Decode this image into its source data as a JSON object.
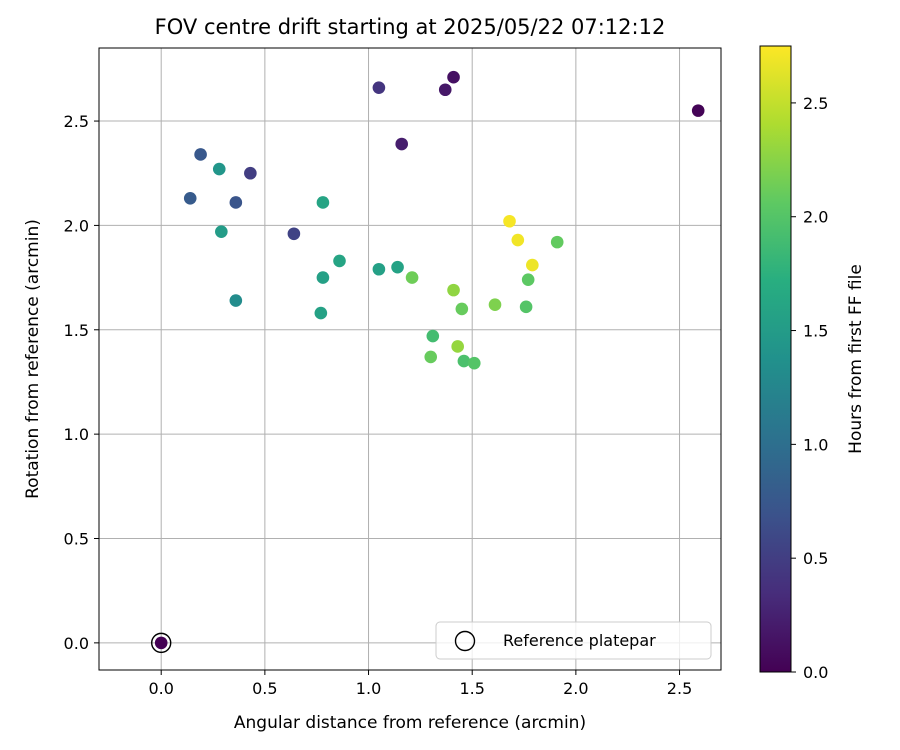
{
  "chart_data": {
    "type": "scatter",
    "title": "FOV centre drift starting at 2025/05/22 07:12:12",
    "xlabel": "Angular distance from reference (arcmin)",
    "ylabel": "Rotation from reference (arcmin)",
    "xlim": [
      -0.3,
      2.7
    ],
    "ylim": [
      -0.13,
      2.85
    ],
    "xticks": [
      0.0,
      0.5,
      1.0,
      1.5,
      2.0,
      2.5
    ],
    "xtick_labels": [
      "0.0",
      "0.5",
      "1.0",
      "1.5",
      "2.0",
      "2.5"
    ],
    "yticks": [
      0.0,
      0.5,
      1.0,
      1.5,
      2.0,
      2.5
    ],
    "ytick_labels": [
      "0.0",
      "0.5",
      "1.0",
      "1.5",
      "2.0",
      "2.5"
    ],
    "grid": true,
    "colorbar": {
      "label": "Hours from first FF file",
      "colormap": "viridis",
      "range": [
        0.0,
        2.75
      ],
      "ticks": [
        0.0,
        0.5,
        1.0,
        1.5,
        2.0,
        2.5
      ],
      "tick_labels": [
        "0.0",
        "0.5",
        "1.0",
        "1.5",
        "2.0",
        "2.5"
      ]
    },
    "reference": {
      "x": 0.0,
      "y": 0.0,
      "label": "Reference platepar"
    },
    "legend": {
      "position": "lower-right",
      "entries": [
        "Reference platepar"
      ]
    },
    "series": [
      {
        "name": "FOV centre",
        "points": [
          {
            "x": 0.0,
            "y": 0.0,
            "t": 0.0
          },
          {
            "x": 2.59,
            "y": 2.55,
            "t": 0.02
          },
          {
            "x": 1.41,
            "y": 2.71,
            "t": 0.12
          },
          {
            "x": 1.37,
            "y": 2.65,
            "t": 0.18
          },
          {
            "x": 1.16,
            "y": 2.39,
            "t": 0.22
          },
          {
            "x": 1.05,
            "y": 2.66,
            "t": 0.42
          },
          {
            "x": 0.43,
            "y": 2.25,
            "t": 0.5
          },
          {
            "x": 0.64,
            "y": 1.96,
            "t": 0.55
          },
          {
            "x": 0.19,
            "y": 2.34,
            "t": 0.75
          },
          {
            "x": 0.14,
            "y": 2.13,
            "t": 0.78
          },
          {
            "x": 0.36,
            "y": 2.11,
            "t": 0.72
          },
          {
            "x": 0.36,
            "y": 1.64,
            "t": 1.32
          },
          {
            "x": 0.28,
            "y": 2.27,
            "t": 1.43
          },
          {
            "x": 0.29,
            "y": 1.97,
            "t": 1.5
          },
          {
            "x": 0.78,
            "y": 2.11,
            "t": 1.6
          },
          {
            "x": 0.78,
            "y": 1.75,
            "t": 1.55
          },
          {
            "x": 0.77,
            "y": 1.58,
            "t": 1.57
          },
          {
            "x": 0.86,
            "y": 1.83,
            "t": 1.6
          },
          {
            "x": 1.05,
            "y": 1.79,
            "t": 1.55
          },
          {
            "x": 1.14,
            "y": 1.8,
            "t": 1.58
          },
          {
            "x": 1.21,
            "y": 1.75,
            "t": 2.13
          },
          {
            "x": 1.31,
            "y": 1.47,
            "t": 1.9
          },
          {
            "x": 1.3,
            "y": 1.37,
            "t": 2.1
          },
          {
            "x": 1.41,
            "y": 1.69,
            "t": 2.28
          },
          {
            "x": 1.45,
            "y": 1.6,
            "t": 2.1
          },
          {
            "x": 1.43,
            "y": 1.42,
            "t": 2.3
          },
          {
            "x": 1.46,
            "y": 1.35,
            "t": 1.95
          },
          {
            "x": 1.51,
            "y": 1.34,
            "t": 2.0
          },
          {
            "x": 1.61,
            "y": 1.62,
            "t": 2.2
          },
          {
            "x": 1.68,
            "y": 2.02,
            "t": 2.72
          },
          {
            "x": 1.72,
            "y": 1.93,
            "t": 2.7
          },
          {
            "x": 1.76,
            "y": 1.61,
            "t": 2.0
          },
          {
            "x": 1.77,
            "y": 1.74,
            "t": 2.05
          },
          {
            "x": 1.79,
            "y": 1.81,
            "t": 2.68
          },
          {
            "x": 1.91,
            "y": 1.92,
            "t": 2.08
          }
        ]
      }
    ]
  }
}
